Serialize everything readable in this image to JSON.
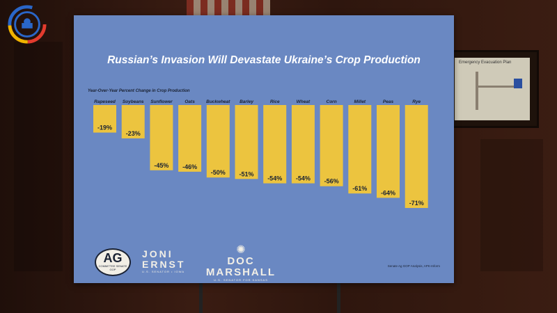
{
  "chart_data": {
    "type": "bar",
    "title": "Russian’s Invasion Will Devastate Ukraine’s Crop Production",
    "ylabel": "Year-Over-Year Percent Change in Crop Production",
    "categories": [
      "Rapeseed",
      "Soybeans",
      "Sunflower",
      "Oats",
      "Buckwheat",
      "Barley",
      "Rice",
      "Wheat",
      "Corn",
      "Millet",
      "Peas",
      "Rye"
    ],
    "values": [
      -19,
      -23,
      -45,
      -46,
      -50,
      -51,
      -54,
      -54,
      -56,
      -61,
      -64,
      -71
    ],
    "value_labels": [
      "-19%",
      "-23%",
      "-45%",
      "-46%",
      "-50%",
      "-51%",
      "-54%",
      "-54%",
      "-56%",
      "-61%",
      "-64%",
      "-71%"
    ],
    "ylim": [
      -71,
      0
    ],
    "grid": false,
    "bar_color": "#ecc43f",
    "background_color": "#6a88c2"
  },
  "logos": {
    "ag": {
      "big": "AG",
      "small": "COMMITTEE SENATE GOP"
    },
    "joni": {
      "name_1": "JONI",
      "name_2": "ERNST",
      "sub": "U.S. SENATOR • IOWA"
    },
    "doc": {
      "name_1": "DOC",
      "name_2": "MARSHALL",
      "sub": "U.S. SENATOR FOR KANSAS"
    }
  },
  "source": "Senate Ag GOP Analysis, APK-Inform",
  "wall": {
    "frame_title": "Emergency Evacuation Plan"
  }
}
